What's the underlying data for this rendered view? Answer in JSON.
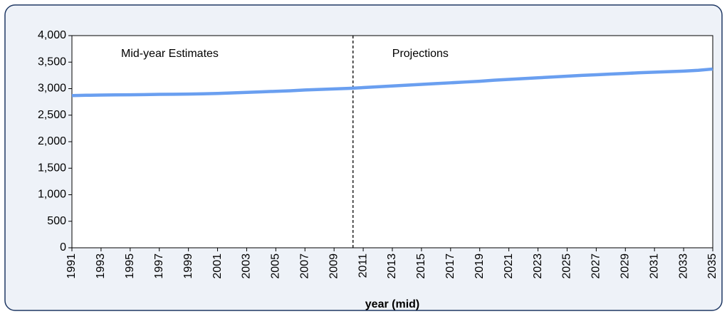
{
  "chart_data": {
    "type": "line",
    "x_label": "year (mid)",
    "annotations": [
      "Mid-year Estimates",
      "Projections"
    ],
    "divider_x": 2010.3,
    "x": [
      1991,
      1992,
      1993,
      1994,
      1995,
      1996,
      1997,
      1998,
      1999,
      2000,
      2001,
      2002,
      2003,
      2004,
      2005,
      2006,
      2007,
      2008,
      2009,
      2010,
      2011,
      2012,
      2013,
      2014,
      2015,
      2016,
      2017,
      2018,
      2019,
      2020,
      2021,
      2022,
      2023,
      2024,
      2025,
      2026,
      2027,
      2028,
      2029,
      2030,
      2031,
      2032,
      2033,
      2034,
      2035
    ],
    "values": [
      2870,
      2875,
      2880,
      2882,
      2885,
      2888,
      2892,
      2895,
      2898,
      2902,
      2910,
      2920,
      2930,
      2940,
      2950,
      2960,
      2975,
      2985,
      2995,
      3005,
      3020,
      3035,
      3050,
      3065,
      3080,
      3095,
      3110,
      3125,
      3140,
      3160,
      3175,
      3190,
      3205,
      3220,
      3235,
      3250,
      3262,
      3275,
      3287,
      3300,
      3310,
      3320,
      3330,
      3345,
      3370
    ],
    "color": "#6a9ff0",
    "xlim": [
      1991,
      2035
    ],
    "xticks": [
      1991,
      1993,
      1995,
      1997,
      1999,
      2001,
      2003,
      2005,
      2007,
      2009,
      2011,
      2013,
      2015,
      2017,
      2019,
      2021,
      2023,
      2025,
      2027,
      2029,
      2031,
      2033,
      2035
    ],
    "ylim": [
      0,
      4000
    ],
    "yticks": [
      0,
      500,
      {
        "value": 1000,
        "label": "1,000"
      },
      {
        "value": 1500,
        "label": "1,500"
      },
      {
        "value": 2000,
        "label": "2,000"
      },
      {
        "value": 2500,
        "label": "2,500"
      },
      {
        "value": 3000,
        "label": "3,000"
      },
      {
        "value": 3500,
        "label": "3,500"
      },
      {
        "value": 4000,
        "label": "4,000"
      }
    ],
    "grid": false
  }
}
